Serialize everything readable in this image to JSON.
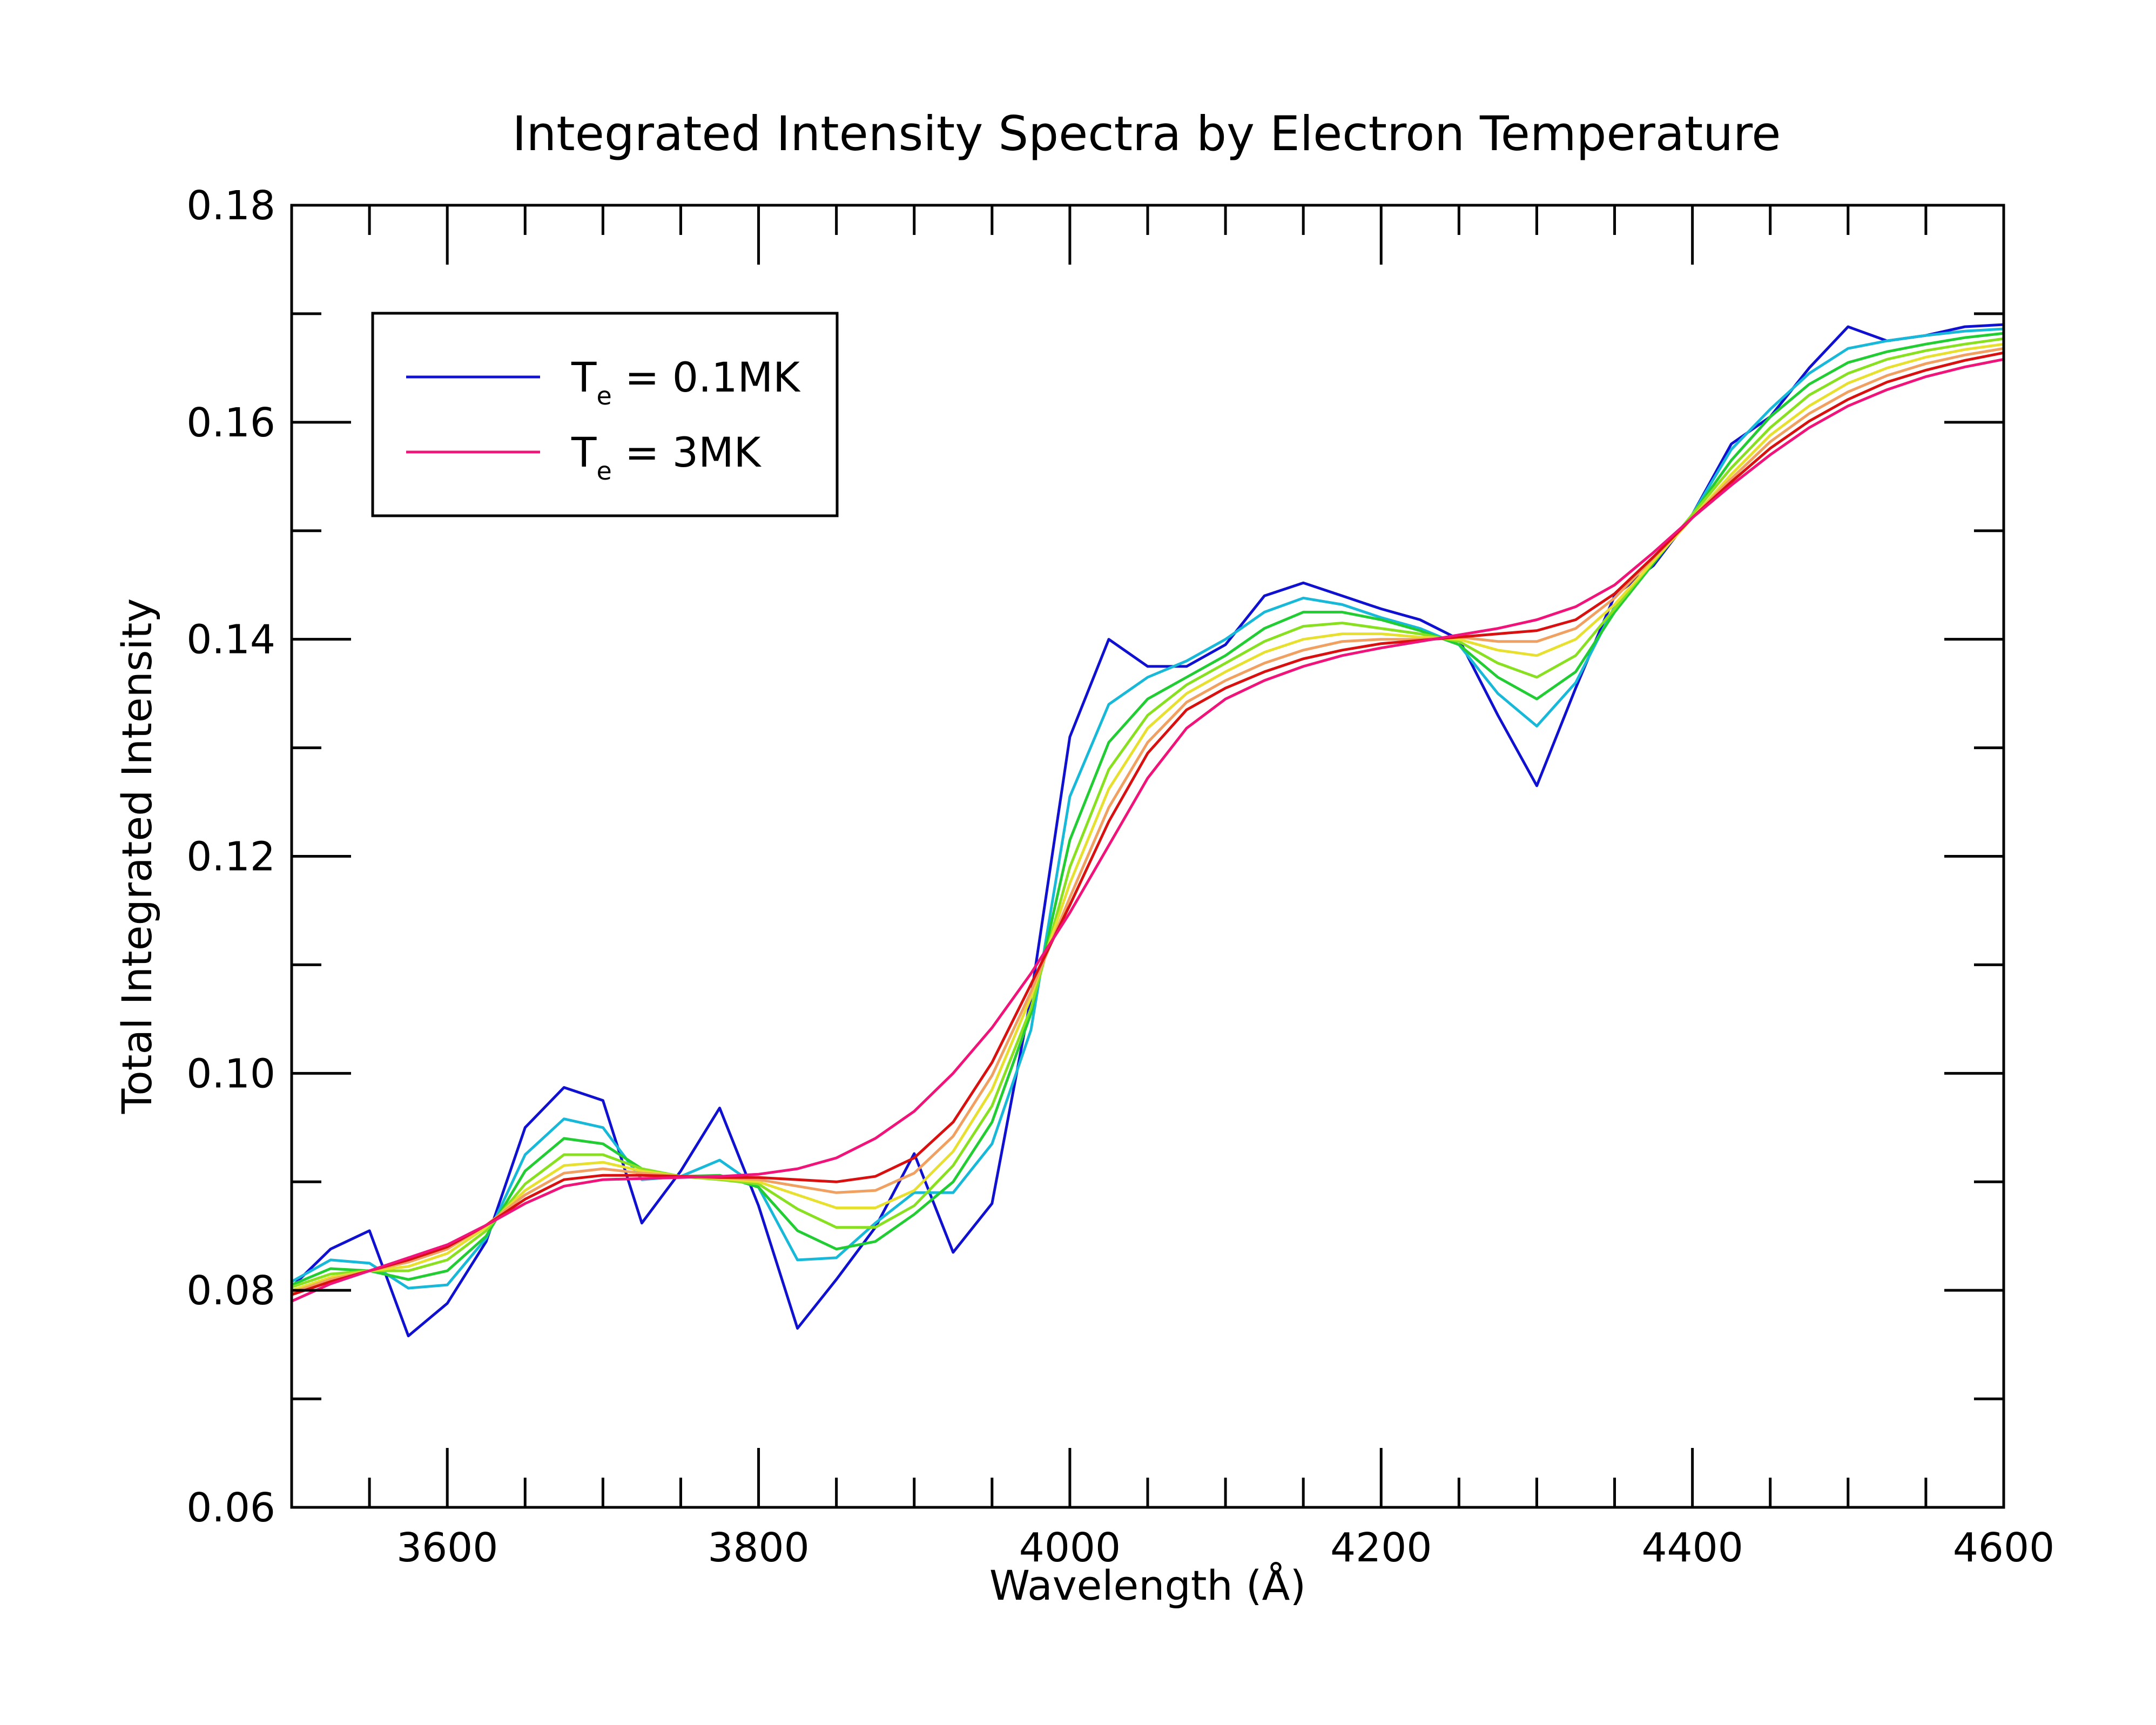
{
  "chart_data": {
    "type": "line",
    "title": "Integrated Intensity Spectra by Electron Temperature",
    "xlabel": "Wavelength (Å)",
    "ylabel": "Total Integrated Intensity",
    "xlim": [
      3500,
      4600
    ],
    "ylim": [
      0.06,
      0.18
    ],
    "x_ticks": [
      3600,
      3800,
      4000,
      4200,
      4400,
      4600
    ],
    "x_tick_labels": [
      "3600",
      "3800",
      "4000",
      "4200",
      "4400",
      "4600"
    ],
    "y_ticks": [
      0.06,
      0.08,
      0.1,
      0.12,
      0.14,
      0.16,
      0.18
    ],
    "y_tick_labels": [
      "0.06",
      "0.08",
      "0.10",
      "0.12",
      "0.14",
      "0.16",
      "0.18"
    ],
    "grid": false,
    "legend_position": "top-left",
    "legend": [
      {
        "label_main": "T",
        "label_sub": "e",
        "label_rest": " = 0.1MK",
        "color": "#1010d0"
      },
      {
        "label_main": "T",
        "label_sub": "e",
        "label_rest": " = 3MK",
        "color": "#f0147a"
      }
    ],
    "x": [
      3500,
      3525,
      3550,
      3575,
      3600,
      3625,
      3650,
      3675,
      3700,
      3725,
      3750,
      3775,
      3800,
      3825,
      3850,
      3875,
      3900,
      3925,
      3950,
      3975,
      4000,
      4025,
      4050,
      4075,
      4100,
      4125,
      4150,
      4175,
      4200,
      4225,
      4250,
      4275,
      4300,
      4325,
      4350,
      4375,
      4400,
      4425,
      4450,
      4475,
      4500,
      4525,
      4550,
      4575,
      4600
    ],
    "series": [
      {
        "color": "#1010d0",
        "values": [
          0.0803,
          0.0838,
          0.0855,
          0.0758,
          0.0788,
          0.0845,
          0.095,
          0.0987,
          0.0975,
          0.0862,
          0.091,
          0.0968,
          0.0878,
          0.0765,
          0.081,
          0.0858,
          0.0926,
          0.0835,
          0.088,
          0.107,
          0.131,
          0.14,
          0.1375,
          0.1375,
          0.1395,
          0.144,
          0.1452,
          0.144,
          0.1428,
          0.1418,
          0.14,
          0.133,
          0.1265,
          0.1355,
          0.144,
          0.1468,
          0.1515,
          0.158,
          0.1605,
          0.165,
          0.1688,
          0.1675,
          0.168,
          0.1688,
          0.169
        ]
      },
      {
        "color": "#18b8d8",
        "values": [
          0.0808,
          0.0828,
          0.0825,
          0.0802,
          0.0805,
          0.0848,
          0.0925,
          0.0958,
          0.095,
          0.0902,
          0.0905,
          0.092,
          0.0895,
          0.0828,
          0.083,
          0.0862,
          0.089,
          0.089,
          0.0935,
          0.104,
          0.1255,
          0.134,
          0.1365,
          0.138,
          0.14,
          0.1425,
          0.1438,
          0.1432,
          0.142,
          0.141,
          0.1395,
          0.135,
          0.132,
          0.136,
          0.143,
          0.147,
          0.1515,
          0.1575,
          0.1612,
          0.1645,
          0.1668,
          0.1675,
          0.168,
          0.1684,
          0.1686
        ]
      },
      {
        "color": "#22cc33",
        "values": [
          0.0805,
          0.082,
          0.0818,
          0.081,
          0.0818,
          0.085,
          0.091,
          0.094,
          0.0935,
          0.0912,
          0.0905,
          0.0906,
          0.0895,
          0.0855,
          0.0838,
          0.0845,
          0.087,
          0.09,
          0.0955,
          0.1055,
          0.1215,
          0.1305,
          0.1345,
          0.1365,
          0.1385,
          0.141,
          0.1425,
          0.1425,
          0.1418,
          0.1408,
          0.1395,
          0.1365,
          0.1345,
          0.137,
          0.1425,
          0.147,
          0.1515,
          0.1565,
          0.1605,
          0.1635,
          0.1655,
          0.1665,
          0.1672,
          0.1678,
          0.1682
        ]
      },
      {
        "color": "#88e020",
        "values": [
          0.0803,
          0.0815,
          0.0818,
          0.0818,
          0.0828,
          0.0855,
          0.0898,
          0.0925,
          0.0925,
          0.0912,
          0.0905,
          0.0902,
          0.0898,
          0.0875,
          0.0858,
          0.0858,
          0.0878,
          0.0915,
          0.097,
          0.106,
          0.119,
          0.128,
          0.133,
          0.1358,
          0.1378,
          0.1398,
          0.1412,
          0.1415,
          0.141,
          0.1405,
          0.1398,
          0.1378,
          0.1365,
          0.1385,
          0.1428,
          0.1472,
          0.1515,
          0.1558,
          0.1595,
          0.1625,
          0.1645,
          0.1658,
          0.1666,
          0.1672,
          0.1677
        ]
      },
      {
        "color": "#e8e030",
        "values": [
          0.08,
          0.0812,
          0.0818,
          0.0822,
          0.0834,
          0.0858,
          0.0892,
          0.0915,
          0.0918,
          0.091,
          0.0905,
          0.0903,
          0.09,
          0.0888,
          0.0876,
          0.0876,
          0.0892,
          0.0928,
          0.0985,
          0.107,
          0.1175,
          0.1262,
          0.1318,
          0.135,
          0.137,
          0.1388,
          0.14,
          0.1405,
          0.1405,
          0.1402,
          0.14,
          0.139,
          0.1385,
          0.14,
          0.1432,
          0.1472,
          0.1512,
          0.1552,
          0.1588,
          0.1615,
          0.1636,
          0.165,
          0.166,
          0.1667,
          0.1672
        ]
      },
      {
        "color": "#f0a060",
        "values": [
          0.0798,
          0.081,
          0.0818,
          0.0826,
          0.0838,
          0.086,
          0.0888,
          0.0908,
          0.0912,
          0.0908,
          0.0905,
          0.0904,
          0.0902,
          0.0896,
          0.089,
          0.0892,
          0.0908,
          0.0942,
          0.0998,
          0.1075,
          0.1162,
          0.1245,
          0.1305,
          0.1342,
          0.1362,
          0.1378,
          0.139,
          0.1398,
          0.14,
          0.14,
          0.1402,
          0.1398,
          0.1398,
          0.141,
          0.1438,
          0.1475,
          0.1512,
          0.1548,
          0.1582,
          0.1608,
          0.1628,
          0.1643,
          0.1654,
          0.1662,
          0.1668
        ]
      },
      {
        "color": "#d81010",
        "values": [
          0.0796,
          0.0808,
          0.0818,
          0.0828,
          0.084,
          0.086,
          0.0884,
          0.0902,
          0.0906,
          0.0906,
          0.0905,
          0.0904,
          0.0904,
          0.0902,
          0.09,
          0.0905,
          0.0922,
          0.0955,
          0.101,
          0.1082,
          0.1155,
          0.1232,
          0.1295,
          0.1335,
          0.1355,
          0.137,
          0.1382,
          0.139,
          0.1396,
          0.1399,
          0.1402,
          0.1405,
          0.1408,
          0.1418,
          0.1442,
          0.1476,
          0.1512,
          0.1545,
          0.1576,
          0.1601,
          0.1621,
          0.1637,
          0.1648,
          0.1657,
          0.1664
        ]
      },
      {
        "color": "#f0147a",
        "values": [
          0.079,
          0.0806,
          0.0818,
          0.083,
          0.0842,
          0.086,
          0.088,
          0.0896,
          0.0902,
          0.0903,
          0.0904,
          0.0905,
          0.0907,
          0.0912,
          0.0922,
          0.094,
          0.0965,
          0.1,
          0.1042,
          0.1092,
          0.1148,
          0.121,
          0.1272,
          0.1318,
          0.1345,
          0.1362,
          0.1375,
          0.1385,
          0.1392,
          0.1398,
          0.1404,
          0.141,
          0.1418,
          0.143,
          0.145,
          0.148,
          0.1512,
          0.1542,
          0.157,
          0.1595,
          0.1615,
          0.163,
          0.1642,
          0.1651,
          0.1658
        ]
      }
    ]
  }
}
